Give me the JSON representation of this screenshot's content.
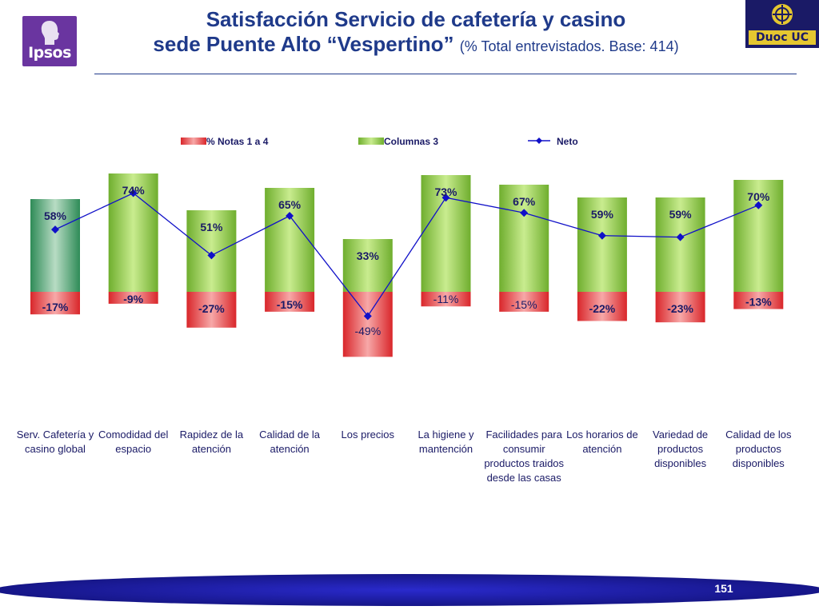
{
  "header": {
    "title_line1": "Satisfacción Servicio de cafetería y casino",
    "title_line2": "sede Puente Alto “Vespertino”",
    "title_sub": "(% Total entrevistados. Base: 414)",
    "logo_left_text": "Ipsos",
    "logo_right_text": "Duoc UC"
  },
  "colors": {
    "red_bar": "#e0393a",
    "green_bar": "#86c440",
    "first_bar": "#2e8b57",
    "line": "#1010c8",
    "title": "#1f3a8a",
    "footer_band": "#1a1a99"
  },
  "chart_data": {
    "type": "bar",
    "title": "",
    "legend_position": "top",
    "categories": [
      "Serv. Cafetería y casino global",
      "Comodidad del espacio",
      "Rapidez de la atención",
      "Calidad de la atención",
      "Los precios",
      "La higiene y mantención",
      "Facilidades para consumir productos traidos desde las casas",
      "Los horarios de atención",
      "Variedad de productos disponibles",
      "Calidad de los productos disponibles"
    ],
    "series": [
      {
        "name": "% Notas 1 a 4",
        "values": [
          -17,
          -9,
          -27,
          -15,
          -49,
          -11,
          -15,
          -22,
          -23,
          -13
        ]
      },
      {
        "name": "Columnas 3",
        "values": [
          58,
          74,
          51,
          65,
          33,
          73,
          67,
          59,
          59,
          70
        ]
      },
      {
        "name": "Neto",
        "values": [
          41,
          65,
          24,
          50,
          -16,
          62,
          52,
          37,
          36,
          57
        ]
      }
    ],
    "positive_labels": [
      "58%",
      "74%",
      "51%",
      "65%",
      "33%",
      "73%",
      "67%",
      "59%",
      "59%",
      "70%"
    ],
    "negative_labels": [
      "-17%",
      "-9%",
      "-27%",
      "-15%",
      "-49%",
      "-11%",
      "-15%",
      "-22%",
      "-23%",
      "-13%"
    ],
    "neto_series_type": "line",
    "ylim": [
      -50,
      75
    ],
    "grid": false
  },
  "footer": {
    "page_number": "151"
  }
}
